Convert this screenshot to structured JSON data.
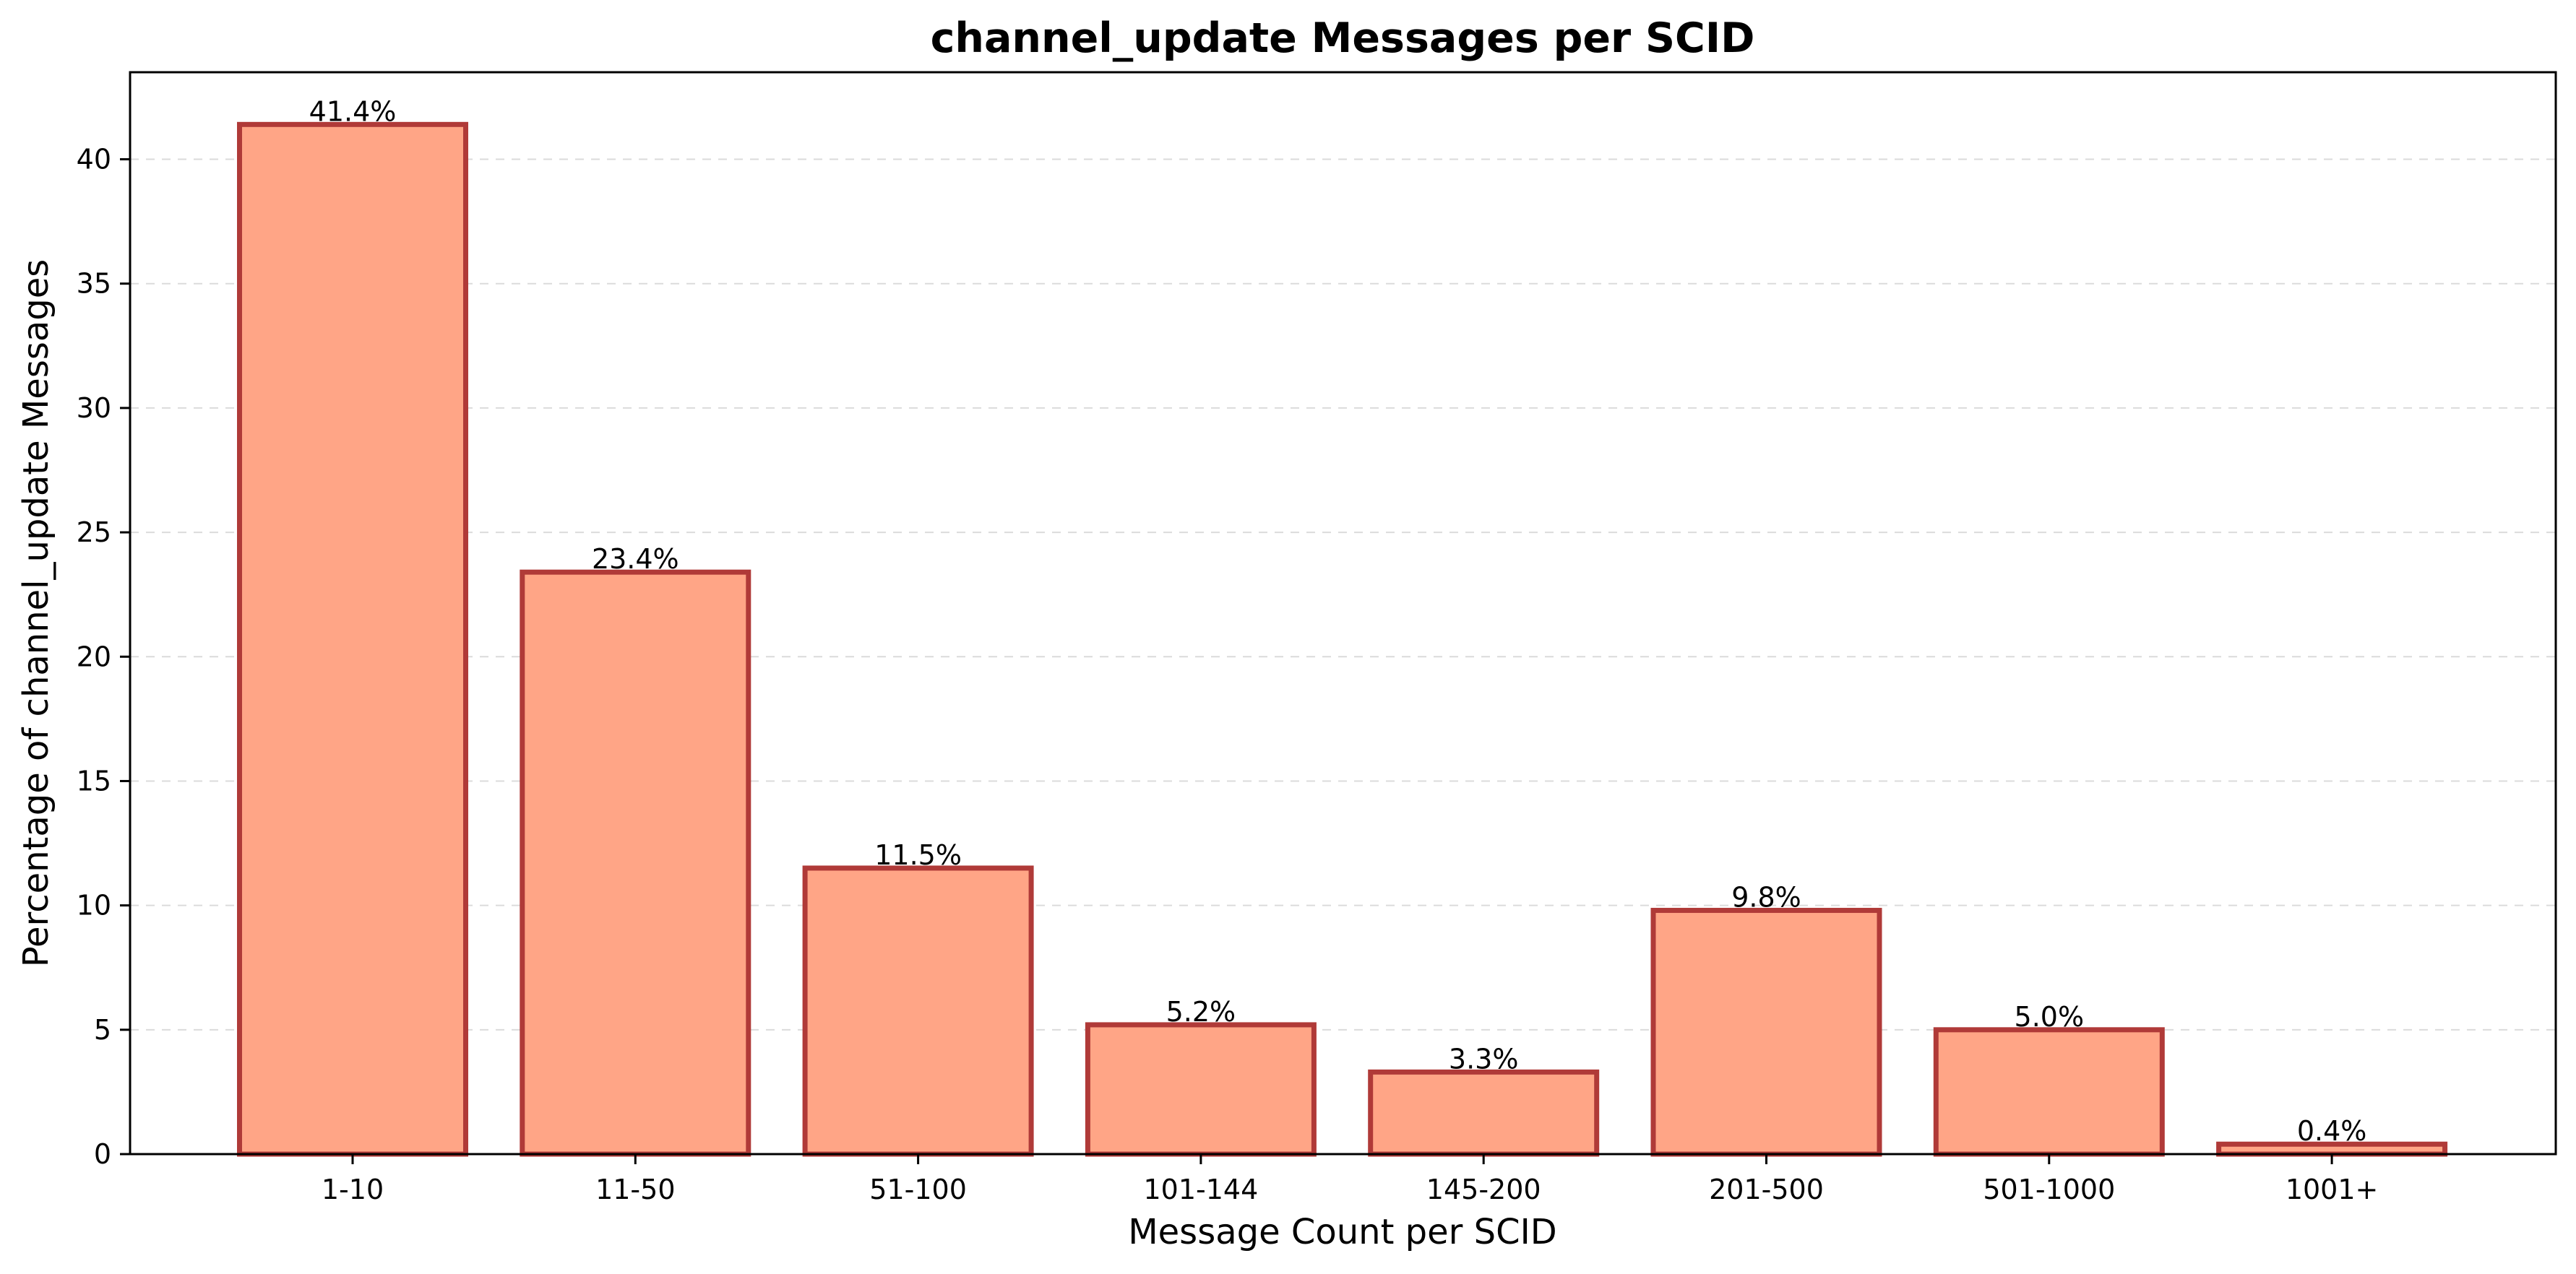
{
  "chart_data": {
    "type": "bar",
    "title": "channel_update Messages per SCID",
    "xlabel": "Message Count per SCID",
    "ylabel": "Percentage of channel_update Messages",
    "categories": [
      "1-10",
      "11-50",
      "51-100",
      "101-144",
      "145-200",
      "201-500",
      "501-1000",
      "1001+"
    ],
    "values": [
      41.4,
      23.4,
      11.5,
      5.2,
      3.3,
      9.8,
      5.0,
      0.4
    ],
    "data_labels": [
      "41.4%",
      "23.4%",
      "11.5%",
      "5.2%",
      "3.3%",
      "9.8%",
      "5.0%",
      "0.4%"
    ],
    "ylim": [
      0,
      43.5
    ],
    "yticks": [
      0,
      5,
      10,
      15,
      20,
      25,
      30,
      35,
      40
    ],
    "grid": "y-dashed",
    "bar_fill": "#FFA586",
    "bar_edge": "#B03A38"
  }
}
